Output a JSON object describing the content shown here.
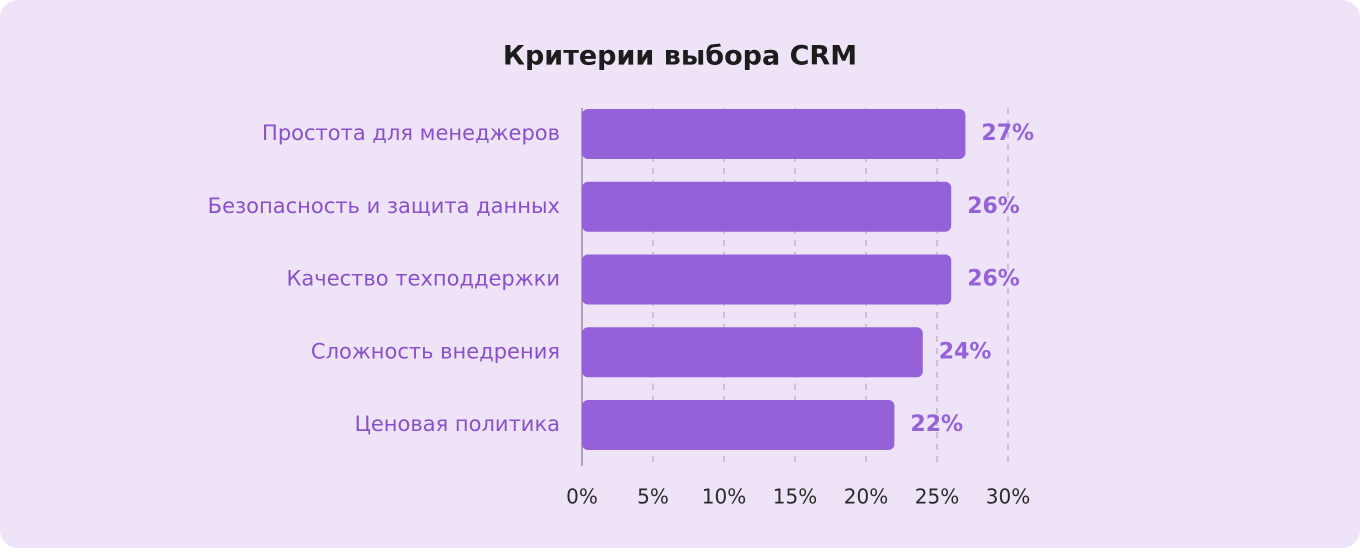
{
  "chart_data": {
    "type": "bar",
    "orientation": "horizontal",
    "title": "Критерии выбора CRM",
    "categories": [
      "Простота для менеджеров",
      "Безопасность и защита данных",
      "Качество техподдержки",
      "Сложность внедрения",
      "Ценовая политика"
    ],
    "values": [
      27,
      26,
      26,
      24,
      22
    ],
    "value_labels": [
      "27%",
      "26%",
      "26%",
      "24%",
      "22%"
    ],
    "color": "#9461d9",
    "xlim": [
      0,
      30
    ],
    "xticks": [
      {
        "value": 0,
        "label": "0%"
      },
      {
        "value": 5,
        "label": "5%"
      },
      {
        "value": 10,
        "label": "10%"
      },
      {
        "value": 15,
        "label": "15%"
      },
      {
        "value": 20,
        "label": "20%"
      },
      {
        "value": 25,
        "label": "25%"
      },
      {
        "value": 30,
        "label": "30%"
      }
    ],
    "grid": true
  }
}
